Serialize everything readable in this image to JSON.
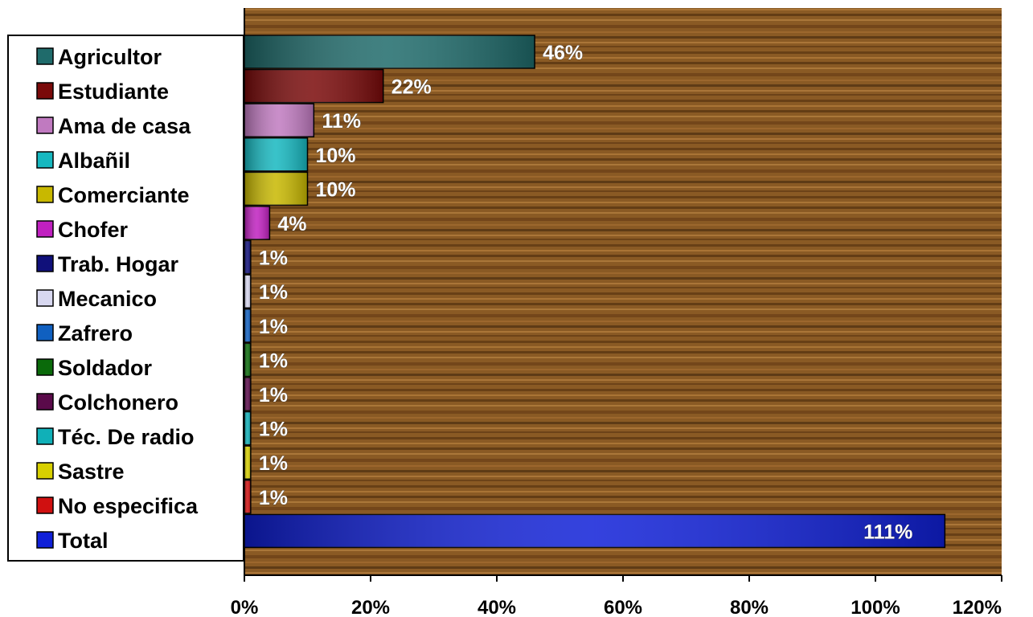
{
  "chart_data": {
    "type": "bar",
    "orientation": "horizontal",
    "title": "",
    "xlabel": "",
    "ylabel": "",
    "xlim": [
      0,
      120
    ],
    "xticks": [
      0,
      20,
      40,
      60,
      80,
      100,
      120
    ],
    "xtick_labels": [
      "0%",
      "20%",
      "40%",
      "60%",
      "80%",
      "100%",
      "120%"
    ],
    "grid": false,
    "legend_position": "left",
    "categories": [
      "Agricultor",
      "Estudiante",
      "Ama de casa",
      "Albañil",
      "Comerciante",
      "Chofer",
      "Trab. Hogar",
      "Mecanico",
      "Zafrero",
      "Soldador",
      "Colchonero",
      "Téc. De radio",
      "Sastre",
      "No especifica",
      "Total"
    ],
    "values": [
      46,
      22,
      11,
      10,
      10,
      4,
      1,
      1,
      1,
      1,
      1,
      1,
      1,
      1,
      111
    ],
    "value_labels": [
      "46%",
      "22%",
      "11%",
      "10%",
      "10%",
      "4%",
      "1%",
      "1%",
      "1%",
      "1%",
      "1%",
      "1%",
      "1%",
      "1%",
      "111%"
    ],
    "colors": [
      "#1f6b6b",
      "#7a0a0a",
      "#c07ac0",
      "#16b8c0",
      "#c8b800",
      "#c020c0",
      "#10107a",
      "#d8d8f0",
      "#1060c0",
      "#0a6a0a",
      "#5a0a4a",
      "#10b0b8",
      "#d8d000",
      "#d01010",
      "#1020d8"
    ]
  }
}
